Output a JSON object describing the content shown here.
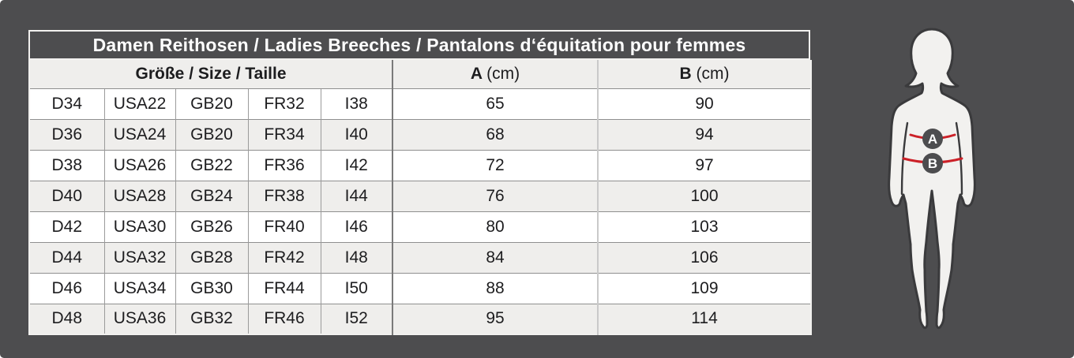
{
  "title": "Damen Reithosen / Ladies Breeches / Pantalons d‘équitation pour femmes",
  "table": {
    "size_header": "Größe / Size / Taille",
    "col_a": {
      "label": "A",
      "unit": "(cm)"
    },
    "col_b": {
      "label": "B",
      "unit": "(cm)"
    },
    "columns": [
      "d",
      "usa",
      "gb",
      "fr",
      "i",
      "a",
      "b"
    ],
    "rows": [
      {
        "d": "D34",
        "usa": "USA22",
        "gb": "GB20",
        "fr": "FR32",
        "i": "I38",
        "a": "65",
        "b": "90"
      },
      {
        "d": "D36",
        "usa": "USA24",
        "gb": "GB20",
        "fr": "FR34",
        "i": "I40",
        "a": "68",
        "b": "94"
      },
      {
        "d": "D38",
        "usa": "USA26",
        "gb": "GB22",
        "fr": "FR36",
        "i": "I42",
        "a": "72",
        "b": "97"
      },
      {
        "d": "D40",
        "usa": "USA28",
        "gb": "GB24",
        "fr": "FR38",
        "i": "I44",
        "a": "76",
        "b": "100"
      },
      {
        "d": "D42",
        "usa": "USA30",
        "gb": "GB26",
        "fr": "FR40",
        "i": "I46",
        "a": "80",
        "b": "103"
      },
      {
        "d": "D44",
        "usa": "USA32",
        "gb": "GB28",
        "fr": "FR42",
        "i": "I48",
        "a": "84",
        "b": "106"
      },
      {
        "d": "D46",
        "usa": "USA34",
        "gb": "GB30",
        "fr": "FR44",
        "i": "I50",
        "a": "88",
        "b": "109"
      },
      {
        "d": "D48",
        "usa": "USA36",
        "gb": "GB32",
        "fr": "FR46",
        "i": "I52",
        "a": "95",
        "b": "114"
      }
    ]
  },
  "figure": {
    "marker_a": "A",
    "marker_b": "B"
  },
  "colors": {
    "background": "#4d4d4f",
    "row": "#ffffff",
    "row_alt": "#efeeec",
    "text": "#1d1d1f",
    "title_text": "#ffffff",
    "measure_line_red": "#cc2128",
    "silhouette_fill": "#f2f1ef",
    "silhouette_outline": "#3a3a3c",
    "badge_background": "#4d4d4f",
    "badge_text": "#ffffff"
  }
}
